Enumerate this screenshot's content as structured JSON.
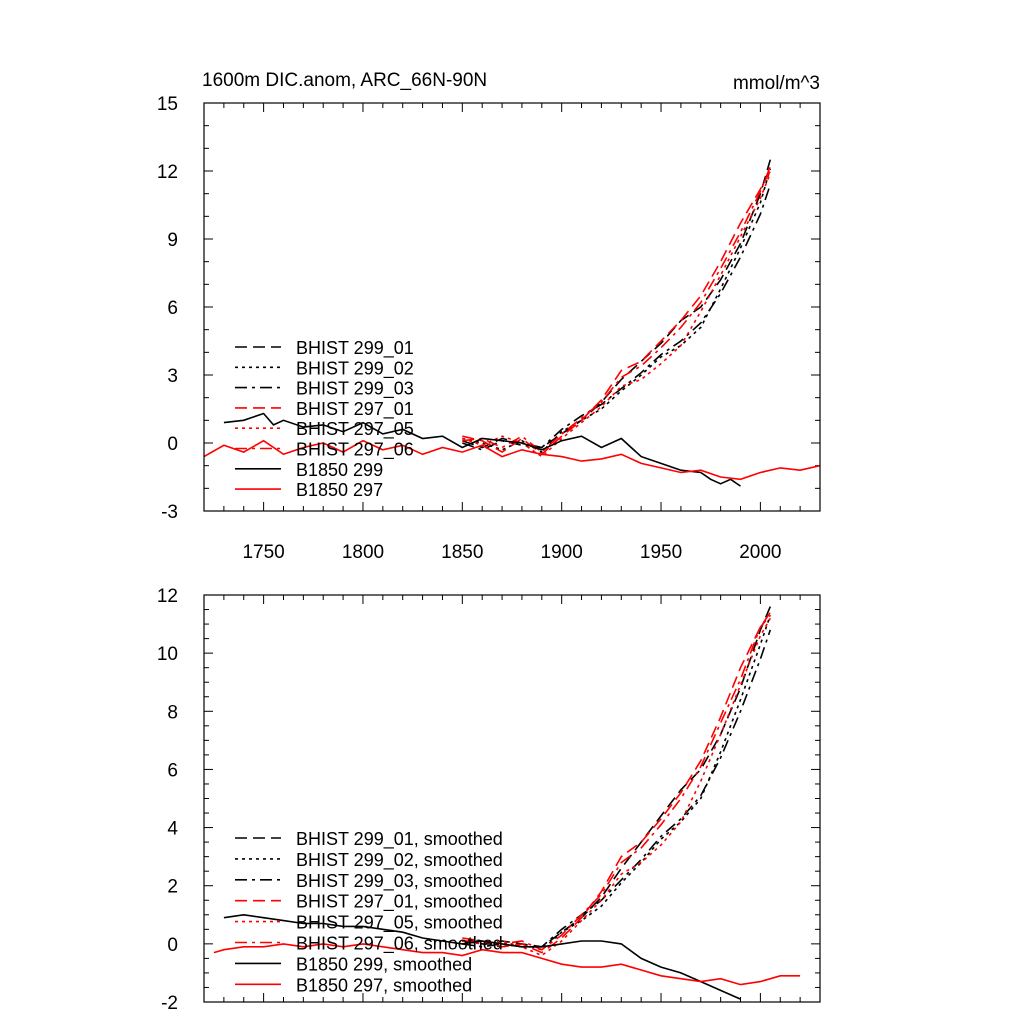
{
  "chart_data": [
    {
      "type": "line",
      "title": "1600m DIC.anom, ARC_66N-90N",
      "units_label": "mmol/m^3",
      "xlim": [
        1720,
        2030
      ],
      "ylim": [
        -3,
        15
      ],
      "yticks": [
        -3,
        0,
        3,
        6,
        9,
        12,
        15
      ],
      "xticks": [
        1750,
        1800,
        1850,
        1900,
        1950,
        2000
      ],
      "legend_position": "lower-left",
      "series": [
        {
          "name": "BHIST 299_01",
          "color": "#000000",
          "dash": "dash",
          "x": [
            1850,
            1860,
            1870,
            1880,
            1890,
            1900,
            1910,
            1920,
            1930,
            1940,
            1950,
            1960,
            1970,
            1980,
            1990,
            2000,
            2005
          ],
          "y": [
            0.1,
            -0.2,
            0.2,
            0.0,
            -0.2,
            0.4,
            1.0,
            1.8,
            2.8,
            3.6,
            4.4,
            5.4,
            6.0,
            7.2,
            8.8,
            11.0,
            12.5
          ]
        },
        {
          "name": "BHIST 299_02",
          "color": "#000000",
          "dash": "dot",
          "x": [
            1850,
            1860,
            1870,
            1880,
            1890,
            1900,
            1910,
            1920,
            1930,
            1940,
            1950,
            1960,
            1970,
            1980,
            1990,
            2000,
            2005
          ],
          "y": [
            0.2,
            0.0,
            -0.3,
            0.1,
            -0.4,
            0.5,
            1.0,
            1.5,
            2.3,
            3.0,
            3.8,
            4.3,
            5.1,
            6.8,
            8.6,
            10.6,
            12.1
          ]
        },
        {
          "name": "BHIST 299_03",
          "color": "#000000",
          "dash": "dashdot",
          "x": [
            1850,
            1860,
            1870,
            1880,
            1890,
            1900,
            1910,
            1920,
            1930,
            1940,
            1950,
            1960,
            1970,
            1980,
            1990,
            2000,
            2005
          ],
          "y": [
            0.0,
            -0.3,
            0.1,
            -0.1,
            -0.2,
            0.6,
            1.2,
            1.7,
            2.4,
            3.1,
            3.9,
            4.5,
            5.3,
            6.6,
            8.2,
            10.1,
            11.4
          ]
        },
        {
          "name": "BHIST 297_01",
          "color": "#ff0000",
          "dash": "dash",
          "x": [
            1850,
            1860,
            1870,
            1880,
            1890,
            1900,
            1910,
            1920,
            1930,
            1940,
            1950,
            1960,
            1970,
            1980,
            1990,
            2000,
            2005
          ],
          "y": [
            0.3,
            0.1,
            -0.4,
            0.2,
            -0.5,
            0.3,
            1.0,
            1.9,
            3.2,
            3.6,
            4.5,
            5.4,
            6.5,
            8.0,
            9.7,
            11.2,
            12.0
          ]
        },
        {
          "name": "BHIST 297_05",
          "color": "#ff0000",
          "dash": "dot",
          "x": [
            1850,
            1860,
            1870,
            1880,
            1890,
            1900,
            1910,
            1920,
            1930,
            1940,
            1950,
            1960,
            1970,
            1980,
            1990,
            2000,
            2005
          ],
          "y": [
            0.2,
            -0.1,
            0.3,
            0.0,
            -0.6,
            0.2,
            0.9,
            1.6,
            2.5,
            2.8,
            3.5,
            4.3,
            5.8,
            7.4,
            9.1,
            10.8,
            11.9
          ]
        },
        {
          "name": "BHIST 297_06",
          "color": "#ff0000",
          "dash": "dashdot",
          "x": [
            1850,
            1860,
            1870,
            1880,
            1890,
            1900,
            1910,
            1920,
            1930,
            1940,
            1950,
            1960,
            1970,
            1980,
            1990,
            2000,
            2005
          ],
          "y": [
            0.1,
            0.2,
            -0.2,
            0.3,
            -0.4,
            0.4,
            1.1,
            1.8,
            2.9,
            3.4,
            4.2,
            5.1,
            6.2,
            7.7,
            9.3,
            11.1,
            12.2
          ]
        },
        {
          "name": "B1850 299",
          "color": "#000000",
          "dash": "solid",
          "x": [
            1730,
            1740,
            1750,
            1755,
            1760,
            1770,
            1780,
            1790,
            1800,
            1810,
            1820,
            1830,
            1840,
            1850,
            1860,
            1870,
            1880,
            1890,
            1900,
            1910,
            1920,
            1930,
            1940,
            1950,
            1960,
            1970,
            1975,
            1980,
            1985,
            1990
          ],
          "y": [
            0.9,
            1.0,
            1.3,
            0.8,
            1.0,
            0.7,
            0.8,
            0.5,
            0.9,
            0.4,
            0.6,
            0.2,
            0.3,
            -0.2,
            0.2,
            0.1,
            0.0,
            -0.3,
            0.1,
            0.3,
            -0.2,
            0.2,
            -0.6,
            -0.9,
            -1.2,
            -1.3,
            -1.6,
            -1.8,
            -1.6,
            -1.9
          ]
        },
        {
          "name": "B1850 297",
          "color": "#ff0000",
          "dash": "solid",
          "x": [
            1720,
            1730,
            1740,
            1750,
            1760,
            1770,
            1780,
            1790,
            1800,
            1810,
            1820,
            1830,
            1840,
            1850,
            1860,
            1870,
            1880,
            1890,
            1900,
            1910,
            1920,
            1930,
            1940,
            1950,
            1960,
            1970,
            1980,
            1990,
            2000,
            2010,
            2020,
            2030
          ],
          "y": [
            -0.6,
            -0.1,
            -0.4,
            0.1,
            -0.5,
            -0.2,
            0.0,
            -0.4,
            0.1,
            -0.3,
            -0.1,
            -0.5,
            -0.2,
            -0.4,
            -0.1,
            -0.6,
            -0.3,
            -0.5,
            -0.6,
            -0.8,
            -0.7,
            -0.5,
            -0.9,
            -1.1,
            -1.3,
            -1.2,
            -1.5,
            -1.6,
            -1.3,
            -1.1,
            -1.2,
            -1.0
          ]
        }
      ]
    },
    {
      "type": "line",
      "xlim": [
        1720,
        2030
      ],
      "ylim": [
        -2,
        12
      ],
      "yticks": [
        -2,
        0,
        2,
        4,
        6,
        8,
        10,
        12
      ],
      "legend_position": "lower-left",
      "series": [
        {
          "name": "BHIST 299_01, smoothed",
          "color": "#000000",
          "dash": "dash",
          "x": [
            1850,
            1860,
            1870,
            1880,
            1890,
            1900,
            1910,
            1920,
            1930,
            1940,
            1950,
            1960,
            1970,
            1980,
            1990,
            2000,
            2005
          ],
          "y": [
            0.1,
            0.0,
            0.1,
            0.0,
            -0.1,
            0.4,
            0.9,
            1.6,
            2.6,
            3.5,
            4.4,
            5.3,
            6.0,
            7.2,
            8.8,
            10.8,
            11.6
          ]
        },
        {
          "name": "BHIST 299_02, smoothed",
          "color": "#000000",
          "dash": "dot",
          "x": [
            1850,
            1860,
            1870,
            1880,
            1890,
            1900,
            1910,
            1920,
            1930,
            1940,
            1950,
            1960,
            1970,
            1980,
            1990,
            2000,
            2005
          ],
          "y": [
            0.1,
            0.0,
            -0.1,
            0.0,
            -0.2,
            0.4,
            0.8,
            1.3,
            2.1,
            2.8,
            3.6,
            4.2,
            5.0,
            6.6,
            8.4,
            10.3,
            11.3
          ]
        },
        {
          "name": "BHIST 299_03, smoothed",
          "color": "#000000",
          "dash": "dashdot",
          "x": [
            1850,
            1860,
            1870,
            1880,
            1890,
            1900,
            1910,
            1920,
            1930,
            1940,
            1950,
            1960,
            1970,
            1980,
            1990,
            2000,
            2005
          ],
          "y": [
            0.0,
            -0.1,
            0.0,
            -0.1,
            -0.1,
            0.5,
            1.0,
            1.5,
            2.2,
            2.9,
            3.7,
            4.3,
            5.1,
            6.4,
            8.0,
            9.8,
            10.8
          ]
        },
        {
          "name": "BHIST 297_01, smoothed",
          "color": "#ff0000",
          "dash": "dash",
          "x": [
            1850,
            1860,
            1870,
            1880,
            1890,
            1900,
            1910,
            1920,
            1930,
            1940,
            1950,
            1960,
            1970,
            1980,
            1990,
            2000,
            2005
          ],
          "y": [
            0.2,
            0.1,
            -0.1,
            0.0,
            -0.3,
            0.2,
            0.9,
            1.8,
            3.0,
            3.5,
            4.3,
            5.2,
            6.3,
            7.8,
            9.5,
            10.9,
            11.4
          ]
        },
        {
          "name": "BHIST 297_05, smoothed",
          "color": "#ff0000",
          "dash": "dot",
          "x": [
            1850,
            1860,
            1870,
            1880,
            1890,
            1900,
            1910,
            1920,
            1930,
            1940,
            1950,
            1960,
            1970,
            1980,
            1990,
            2000,
            2005
          ],
          "y": [
            0.1,
            0.0,
            0.1,
            -0.1,
            -0.4,
            0.1,
            0.8,
            1.5,
            2.4,
            2.8,
            3.4,
            4.2,
            5.6,
            7.2,
            8.9,
            10.6,
            11.2
          ]
        },
        {
          "name": "BHIST 297_06, smoothed",
          "color": "#ff0000",
          "dash": "dashdot",
          "x": [
            1850,
            1860,
            1870,
            1880,
            1890,
            1900,
            1910,
            1920,
            1930,
            1940,
            1950,
            1960,
            1970,
            1980,
            1990,
            2000,
            2005
          ],
          "y": [
            0.1,
            0.1,
            0.0,
            0.1,
            -0.2,
            0.3,
            1.0,
            1.7,
            2.8,
            3.3,
            4.1,
            5.0,
            6.1,
            7.6,
            9.1,
            10.9,
            11.3
          ]
        },
        {
          "name": "B1850 299, smoothed",
          "color": "#000000",
          "dash": "solid",
          "x": [
            1730,
            1740,
            1750,
            1760,
            1770,
            1780,
            1790,
            1800,
            1810,
            1820,
            1830,
            1840,
            1850,
            1860,
            1870,
            1880,
            1890,
            1900,
            1910,
            1920,
            1930,
            1940,
            1950,
            1960,
            1970,
            1980,
            1990
          ],
          "y": [
            0.9,
            1.0,
            0.9,
            0.8,
            0.7,
            0.7,
            0.6,
            0.6,
            0.5,
            0.4,
            0.2,
            0.1,
            0.0,
            0.1,
            0.0,
            -0.1,
            -0.1,
            0.0,
            0.1,
            0.1,
            0.0,
            -0.5,
            -0.8,
            -1.0,
            -1.3,
            -1.6,
            -1.9
          ]
        },
        {
          "name": "B1850 297, smoothed",
          "color": "#ff0000",
          "dash": "solid",
          "x": [
            1725,
            1730,
            1740,
            1750,
            1760,
            1770,
            1780,
            1790,
            1800,
            1810,
            1820,
            1830,
            1840,
            1850,
            1860,
            1870,
            1880,
            1890,
            1900,
            1910,
            1920,
            1930,
            1940,
            1950,
            1960,
            1970,
            1980,
            1990,
            2000,
            2010,
            2020
          ],
          "y": [
            -0.3,
            -0.2,
            -0.1,
            -0.1,
            0.0,
            -0.1,
            0.0,
            -0.1,
            0.0,
            -0.1,
            -0.2,
            -0.3,
            -0.3,
            -0.4,
            -0.2,
            -0.3,
            -0.3,
            -0.5,
            -0.7,
            -0.8,
            -0.8,
            -0.7,
            -0.9,
            -1.1,
            -1.2,
            -1.3,
            -1.2,
            -1.4,
            -1.3,
            -1.1,
            -1.1
          ]
        }
      ]
    }
  ]
}
